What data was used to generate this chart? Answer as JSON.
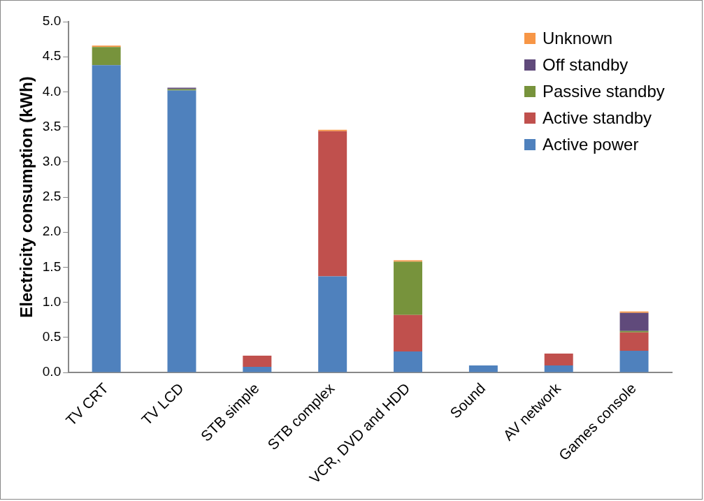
{
  "chart_data": {
    "type": "bar",
    "stacked": true,
    "ylabel": "Electricity consumption (kWh)",
    "categories": [
      "TV CRT",
      "TV LCD",
      "STB simple",
      "STB complex",
      "VCR, DVD and HDD",
      "Sound",
      "AV network",
      "Games console"
    ],
    "series": [
      {
        "name": "Active power",
        "color": "#4f81bd",
        "values": [
          4.38,
          4.02,
          0.08,
          1.37,
          0.3,
          0.1,
          0.1,
          0.31
        ]
      },
      {
        "name": "Active standby",
        "color": "#c0504d",
        "values": [
          0,
          0,
          0.16,
          2.07,
          0.52,
          0,
          0.17,
          0.26
        ]
      },
      {
        "name": "Passive standby",
        "color": "#77933c",
        "values": [
          0.26,
          0.02,
          0,
          0,
          0.76,
          0,
          0,
          0.02
        ]
      },
      {
        "name": "Off standby",
        "color": "#604a7b",
        "values": [
          0,
          0.02,
          0,
          0,
          0,
          0,
          0,
          0.26
        ]
      },
      {
        "name": "Unknown",
        "color": "#f79646",
        "values": [
          0.02,
          0,
          0,
          0.02,
          0.02,
          0,
          0,
          0.02
        ]
      }
    ],
    "ylim": [
      0,
      5
    ],
    "yticks": [
      {
        "value": 0,
        "label": "0.0"
      },
      {
        "value": 0.5,
        "label": "0.5"
      },
      {
        "value": 1,
        "label": "1.0"
      },
      {
        "value": 1.5,
        "label": "1.5"
      },
      {
        "value": 2,
        "label": "2.0"
      },
      {
        "value": 2.5,
        "label": "2.5"
      },
      {
        "value": 3,
        "label": "3.0"
      },
      {
        "value": 3.5,
        "label": "3.5"
      },
      {
        "value": 4,
        "label": "4.0"
      },
      {
        "value": 4.5,
        "label": "4.5"
      },
      {
        "value": 5,
        "label": "5.0"
      }
    ],
    "grid": false,
    "legend": "top right"
  }
}
